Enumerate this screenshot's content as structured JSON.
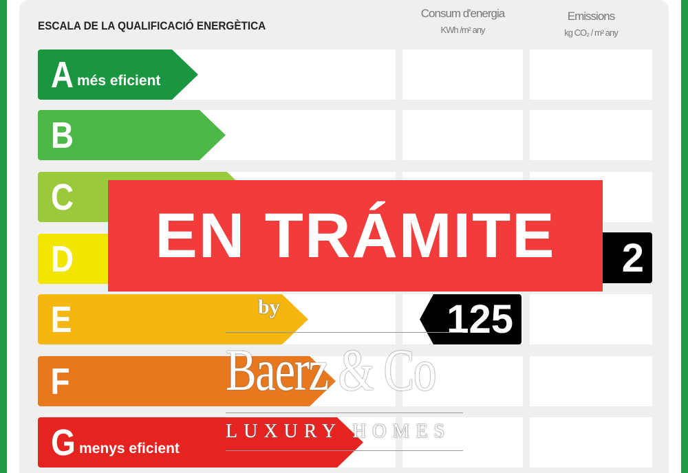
{
  "header": {
    "title": "ESCALA DE LA QUALIFICACIÓ ENERGÈTICA",
    "col_energy": "Consum d'energia",
    "col_energy_unit": "KWh /m² any",
    "col_emissions": "Emissions",
    "col_emissions_unit": "kg CO₂ / m² any"
  },
  "ratings": [
    {
      "letter": "A",
      "label": "més eficient",
      "color": "#1a9641"
    },
    {
      "letter": "B",
      "label": "",
      "color": "#4db848"
    },
    {
      "letter": "C",
      "label": "",
      "color": "#9bc93c"
    },
    {
      "letter": "D",
      "label": "",
      "color": "#f2e600"
    },
    {
      "letter": "E",
      "label": "",
      "color": "#f5b70f"
    },
    {
      "letter": "F",
      "label": "",
      "color": "#e7781e"
    },
    {
      "letter": "G",
      "label": "menys eficient",
      "color": "#e52421"
    }
  ],
  "energy_value": {
    "value": "125",
    "rating": "E"
  },
  "emissions_value": {
    "value": "2",
    "rating": "D"
  },
  "banner": {
    "text": "EN TRÁMITE",
    "color": "#f23c3c"
  },
  "watermark": {
    "by": "by",
    "brand": "Baerz & Co",
    "tagline": "LUXURY HOMES"
  }
}
